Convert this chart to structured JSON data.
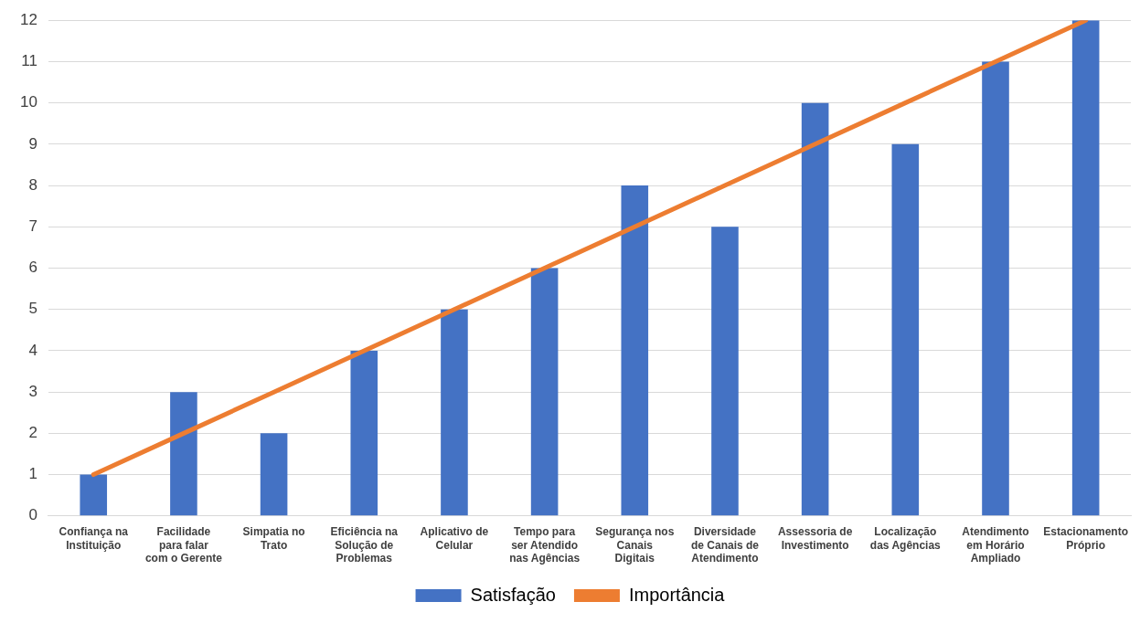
{
  "chart_data": {
    "type": "bar",
    "categories": [
      "Confiança na Instituição",
      "Facilidade para falar com o Gerente",
      "Simpatia no Trato",
      "Eficiência na Solução de Problemas",
      "Aplicativo de Celular",
      "Tempo para ser Atendido nas Agências",
      "Segurança nos Canais Digitais",
      "Diversidade de Canais de Atendimento",
      "Assessoria de Investimento",
      "Localização das Agências",
      "Atendimento em Horário Ampliado",
      "Estacionamento Próprio"
    ],
    "series": [
      {
        "name": "Satisfação",
        "color": "#4472c4",
        "values": [
          1,
          3,
          2,
          4,
          5,
          6,
          8,
          7,
          10,
          9,
          11,
          12
        ]
      },
      {
        "name": "Importância",
        "type": "line",
        "color": "#ed7d31",
        "values": [
          1,
          2,
          3,
          4,
          5,
          6,
          7,
          8,
          9,
          10,
          11,
          12
        ]
      }
    ],
    "ylim": [
      0,
      12
    ],
    "yticks": [
      0,
      1,
      2,
      3,
      4,
      5,
      6,
      7,
      8,
      9,
      10,
      11,
      12
    ],
    "grid": "y",
    "legend": "bottom",
    "marker": "none",
    "line_style": "solid"
  }
}
